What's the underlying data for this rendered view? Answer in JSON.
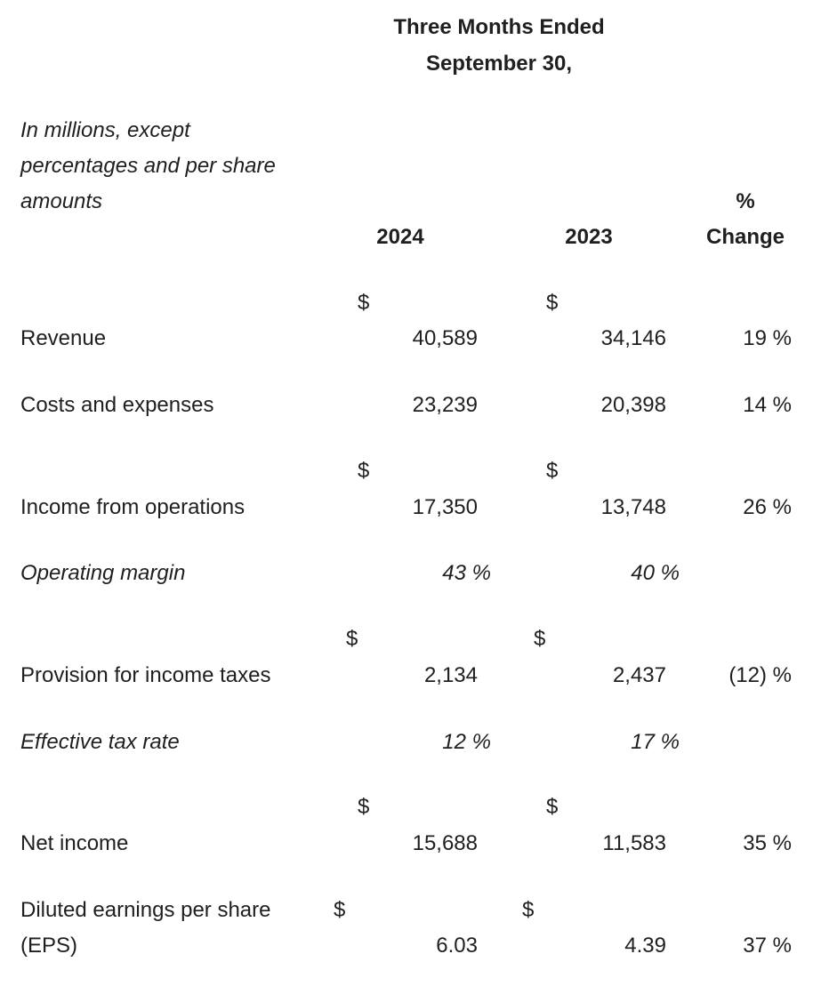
{
  "header": {
    "period_line1": "Three Months Ended",
    "period_line2": "September 30,",
    "units_line1": "In millions, except",
    "units_line2": "percentages and per share",
    "units_line3": "amounts",
    "col_2024": "2024",
    "col_2023": "2023",
    "change_line1": "%",
    "change_line2": "Change"
  },
  "currency_symbol": "$",
  "rows": [
    {
      "label": "Revenue",
      "v2024": "40,589",
      "v2023": "34,146",
      "change": "19 %"
    },
    {
      "label": "Costs and expenses",
      "v2024": "23,239",
      "v2023": "20,398",
      "change": "14 %"
    },
    {
      "label": "Income from operations",
      "v2024": "17,350",
      "v2023": "13,748",
      "change": "26 %"
    },
    {
      "label": "Operating margin",
      "v2024": "43 %",
      "v2023": "40 %"
    },
    {
      "label": "Provision for income taxes",
      "v2024": "2,134",
      "v2023": "2,437",
      "change": "(12) %"
    },
    {
      "label": "Effective tax rate",
      "v2024": "12 %",
      "v2023": "17 %"
    },
    {
      "label": "Net income",
      "v2024": "15,688",
      "v2023": "11,583",
      "change": "35 %"
    },
    {
      "label_line1": "Diluted earnings per share",
      "label_line2": "(EPS)",
      "v2024": "6.03",
      "v2023": "4.39",
      "change": "37 %"
    }
  ]
}
